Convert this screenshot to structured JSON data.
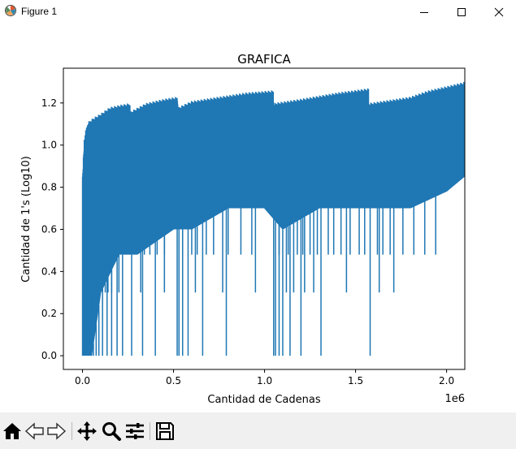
{
  "window": {
    "title": "Figure 1",
    "icon": "matplotlib-figure-icon",
    "controls": [
      "minimize-icon",
      "maximize-icon",
      "close-icon"
    ]
  },
  "chart_data": {
    "type": "line",
    "title": "GRAFICA",
    "xlabel": "Cantidad de Cadenas",
    "ylabel": "Cantidad de 1's (Log10)",
    "x_offset_label": "1e6",
    "xlim": [
      -0.105,
      2.1
    ],
    "ylim": [
      -0.065,
      1.365
    ],
    "xticks": [
      0.0,
      0.5,
      1.0,
      1.5,
      2.0
    ],
    "xtick_labels": [
      "0.0",
      "0.5",
      "1.0",
      "1.5",
      "2.0"
    ],
    "yticks": [
      0.0,
      0.2,
      0.4,
      0.6,
      0.8,
      1.0,
      1.2
    ],
    "ytick_labels": [
      "0.0",
      "0.2",
      "0.4",
      "0.6",
      "0.8",
      "1.0",
      "1.2"
    ],
    "series_color": "#1f77b4",
    "upper_envelope": {
      "x": [
        0.0,
        0.005,
        0.01,
        0.02,
        0.03,
        0.06,
        0.1,
        0.15,
        0.2,
        0.262,
        0.263,
        0.35,
        0.45,
        0.524,
        0.525,
        0.6,
        0.75,
        0.9,
        1.048,
        1.049,
        1.2,
        1.4,
        1.572,
        1.573,
        1.8,
        1.9,
        2.0,
        2.097
      ],
      "y": [
        0.85,
        0.95,
        1.04,
        1.08,
        1.11,
        1.13,
        1.15,
        1.18,
        1.19,
        1.2,
        1.16,
        1.2,
        1.22,
        1.23,
        1.18,
        1.21,
        1.23,
        1.25,
        1.26,
        1.2,
        1.22,
        1.25,
        1.27,
        1.2,
        1.23,
        1.26,
        1.28,
        1.3
      ]
    },
    "lower_envelope": {
      "x": [
        0.0,
        0.05,
        0.1,
        0.2,
        0.3,
        0.5,
        0.6,
        0.8,
        1.0,
        1.1,
        1.3,
        1.5,
        1.6,
        1.8,
        2.0,
        2.097
      ],
      "y": [
        0.0,
        0.0,
        0.3,
        0.48,
        0.48,
        0.6,
        0.6,
        0.7,
        0.7,
        0.6,
        0.7,
        0.7,
        0.7,
        0.7,
        0.78,
        0.85
      ]
    },
    "drops_to_zero_x": [
      0.0,
      0.005,
      0.012,
      0.02,
      0.03,
      0.045,
      0.06,
      0.075,
      0.09,
      0.11,
      0.135,
      0.16,
      0.19,
      0.22,
      0.27,
      0.33,
      0.4,
      0.52,
      0.53,
      0.55,
      0.58,
      0.66,
      0.79,
      1.05,
      1.06,
      1.08,
      1.1,
      1.14,
      1.2,
      1.31,
      1.58
    ],
    "drops_to_0_3_x": [
      0.05,
      0.1,
      0.11,
      0.125,
      0.14,
      0.16,
      0.2,
      0.32,
      0.45,
      0.62,
      0.77,
      0.95,
      1.12,
      1.16,
      1.22,
      1.27,
      1.45,
      1.63,
      1.71
    ],
    "drops_to_0_48_x": [
      0.15,
      0.2,
      0.24,
      0.25,
      0.27,
      0.34,
      0.37,
      0.41,
      0.45,
      0.55,
      0.6,
      0.63,
      0.68,
      0.72,
      0.8,
      0.87,
      0.93,
      1.08,
      1.13,
      1.18,
      1.21,
      1.25,
      1.29,
      1.35,
      1.38,
      1.42,
      1.47,
      1.52,
      1.55,
      1.62,
      1.65,
      1.69,
      1.76,
      1.82,
      1.88,
      1.94
    ]
  },
  "toolbar": {
    "tools": [
      {
        "name": "home-icon"
      },
      {
        "name": "back-icon"
      },
      {
        "name": "forward-icon"
      },
      {
        "name": "pan-icon"
      },
      {
        "name": "zoom-icon"
      },
      {
        "name": "subplots-icon"
      },
      {
        "name": "save-icon"
      }
    ]
  }
}
